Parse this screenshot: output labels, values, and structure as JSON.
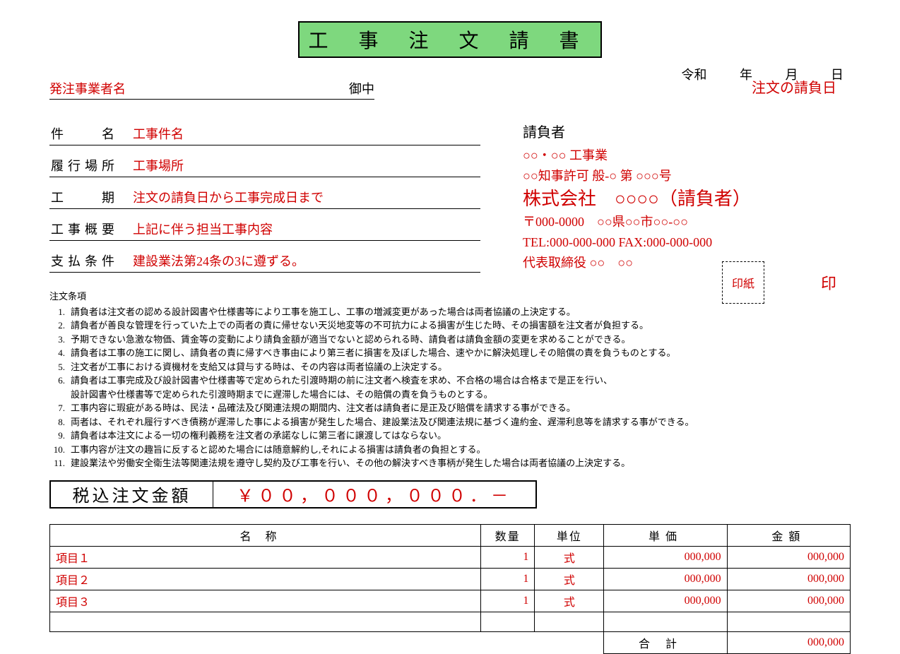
{
  "title": "工 事 注 文 請 書",
  "date": {
    "era": "令和",
    "year_label": "年",
    "month_label": "月",
    "day_label": "日"
  },
  "contract_date_note": "注文の請負日",
  "client": {
    "label": "発注事業者名",
    "honorific": "御中"
  },
  "fields": {
    "name": {
      "label": "件　　名",
      "value": "工事件名"
    },
    "place": {
      "label": "履行場所",
      "value": "工事場所"
    },
    "period": {
      "label": "工　　期",
      "value": "注文の請負日から工事完成日まで"
    },
    "outline": {
      "label": "工事概要",
      "value": "上記に伴う担当工事内容"
    },
    "payment": {
      "label": "支払条件",
      "value": "建設業法第24条の3に遵ずる。"
    }
  },
  "contractor": {
    "heading": "請負者",
    "type_line": "○○・○○ 工事業",
    "license_line": "○○知事許可 般-○ 第 ○○○号",
    "company": "株式会社　○○○○（請負者）",
    "address": "〒000-0000　○○県○○市○○-○○",
    "tel_fax": "TEL:000-000-000 FAX:000-000-000",
    "rep": "代表取締役 ○○　○○"
  },
  "stamp": {
    "revenue": "印紙",
    "seal": "印"
  },
  "terms_heading": "注文条項",
  "terms": [
    "請負者は注文者の認める設計図書や仕様書等により工事を施工し、工事の増減変更があった場合は両者協議の上決定する。",
    "請負者が善良な管理を行っていた上での両者の責に帰せない天災地変等の不可抗力による損害が生じた時、その損害額を注文者が負担する。",
    "予期できない急激な物価、賃金等の変動により請負金額が適当でないと認められる時、請負者は請負金額の変更を求めることができる。",
    "請負者は工事の施工に関し、請負者の責に帰すべき事由により第三者に損害を及ぼした場合、速やかに解決処理しその賠償の責を負うものとする。",
    "注文者が工事における資機材を支給又は貸与する時は、その内容は両者協議の上決定する。",
    "請負者は工事完成及び設計図書や仕様書等で定められた引渡時期の前に注文者へ検査を求め、不合格の場合は合格まで是正を行い、\n設計図書や仕様書等で定められた引渡時期までに遅滞した場合には、その賠償の責を負うものとする。",
    "工事内容に瑕疵がある時は、民法・品確法及び関連法規の期間内、注文者は請負者に是正及び賠償を請求する事ができる。",
    "両者は、それぞれ履行すべき債務が遅滞した事による損害が発生した場合、建設業法及び関連法規に基づく違約金、遅滞利息等を請求する事ができる。",
    "請負者は本注文による一切の権利義務を注文者の承諾なしに第三者に譲渡してはならない。",
    "工事内容が注文の趣旨に反すると認めた場合には随意解約し,それによる損害は請負者の負担とする。",
    "建設業法や労働安全衛生法等関連法規を遵守し契約及び工事を行い、その他の解決すべき事柄が発生した場合は両者協議の上決定する。"
  ],
  "amount": {
    "label": "税込注文金額",
    "value": "￥００，０００，０００．－"
  },
  "table": {
    "headers": {
      "name": "名称",
      "qty": "数量",
      "unit": "単位",
      "price": "単価",
      "amount": "金額"
    },
    "rows": [
      {
        "name": "項目１",
        "qty": "1",
        "unit": "式",
        "price": "000,000",
        "amount": "000,000"
      },
      {
        "name": "項目２",
        "qty": "1",
        "unit": "式",
        "price": "000,000",
        "amount": "000,000"
      },
      {
        "name": "項目３",
        "qty": "1",
        "unit": "式",
        "price": "000,000",
        "amount": "000,000"
      }
    ],
    "blank_rows": 1,
    "total_label": "合計",
    "total_amount": "000,000"
  },
  "colors": {
    "accent": "#d00000",
    "title_bg": "#7ed87e",
    "border": "#000000",
    "bg": "#ffffff"
  }
}
